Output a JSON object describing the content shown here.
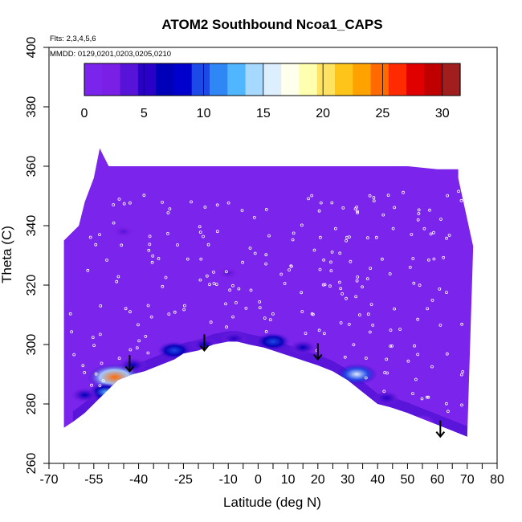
{
  "chart_data": {
    "type": "heatmap",
    "title": "ATOM2 Southbound Ncoa1_CAPS",
    "xlabel": "Latitude (deg N)",
    "ylabel": "Theta (C)",
    "xlim": [
      -70,
      80
    ],
    "ylim": [
      260,
      400
    ],
    "x_major_ticks": [
      -70,
      -55,
      -40,
      -25,
      -10,
      0,
      10,
      20,
      30,
      40,
      50,
      60,
      70,
      80
    ],
    "x_minor_ticks": [
      -65,
      -60,
      -50,
      -45,
      -35,
      -30,
      -20,
      -15,
      -5,
      5,
      15,
      25,
      35,
      45,
      55,
      65,
      75
    ],
    "y_ticks": [
      260,
      280,
      300,
      320,
      340,
      360,
      380,
      400
    ],
    "annotations": [
      "Flts: 2,3,4,5,6",
      "MMDD: 0129,0201,0203,0205,0210"
    ],
    "colorbar": {
      "ticks": [
        0,
        5,
        10,
        15,
        20,
        25,
        30
      ],
      "range": [
        0,
        31.5
      ],
      "colors": [
        "#7b24eb",
        "#7a1fe6",
        "#5714d8",
        "#2a00c6",
        "#0000b8",
        "#0000cc",
        "#1c4ae6",
        "#2f86f5",
        "#50b6ff",
        "#a7d8ff",
        "#ddeeff",
        "#ffffee",
        "#ffffb0",
        "#ffe260",
        "#ffc41a",
        "#ffa200",
        "#ff6a00",
        "#ff2a00",
        "#e00000",
        "#c00000",
        "#a01e1e"
      ]
    },
    "background_value": 0,
    "lower_boundary": {
      "x": [
        -62,
        -58,
        -52,
        -47,
        -42,
        -38,
        -33,
        -28,
        -25,
        -20,
        -15,
        -10,
        -7,
        -3,
        2,
        8,
        14,
        20,
        25,
        30,
        35,
        40,
        44,
        50,
        55,
        60,
        65,
        70
      ],
      "y": [
        274,
        277,
        283,
        288,
        290,
        291,
        293,
        295,
        297,
        298,
        300,
        301,
        301,
        300,
        299,
        297,
        295,
        293,
        291,
        288,
        284,
        280,
        279,
        277,
        275,
        273,
        271,
        269
      ]
    },
    "upper_boundary": {
      "x": [
        -65,
        -65,
        -60,
        -58,
        -55,
        -53,
        -50,
        -40,
        -30,
        -20,
        -10,
        0,
        10,
        20,
        30,
        40,
        50,
        60,
        67,
        67,
        72
      ],
      "y": [
        272,
        335,
        340,
        348,
        356,
        366,
        360,
        360,
        360,
        360,
        360,
        360,
        360,
        360,
        360,
        360,
        360,
        359,
        359,
        356,
        333
      ]
    },
    "enhanced_regions": [
      {
        "lat": -42,
        "theta": 293,
        "value": 7
      },
      {
        "lat": -48,
        "theta": 289,
        "value": 24
      },
      {
        "lat": -51,
        "theta": 284,
        "value": 12
      },
      {
        "lat": -58,
        "theta": 283,
        "value": 6
      },
      {
        "lat": -28,
        "theta": 298,
        "value": 10
      },
      {
        "lat": -18,
        "theta": 300,
        "value": 6
      },
      {
        "lat": -8,
        "theta": 302,
        "value": 5
      },
      {
        "lat": 5,
        "theta": 301,
        "value": 10
      },
      {
        "lat": 15,
        "theta": 299,
        "value": 6
      },
      {
        "lat": 33,
        "theta": 290,
        "value": 15
      },
      {
        "lat": 43,
        "theta": 282,
        "value": 5
      },
      {
        "lat": 55,
        "theta": 274,
        "value": 4
      },
      {
        "lat": -45,
        "theta": 338,
        "value": 3
      },
      {
        "lat": -10,
        "theta": 324,
        "value": 3
      }
    ],
    "markers": {
      "type": "downward-arrow",
      "points": [
        {
          "lat": -43,
          "theta": 291
        },
        {
          "lat": -18,
          "theta": 298
        },
        {
          "lat": 20,
          "theta": 295
        },
        {
          "lat": 61,
          "theta": 269
        }
      ]
    },
    "sample_points_color": "#ffffff"
  }
}
